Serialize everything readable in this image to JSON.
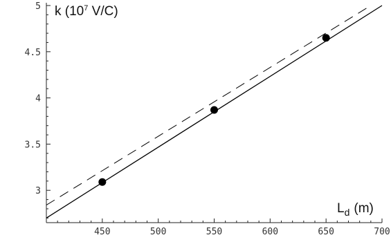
{
  "chart_data": {
    "type": "line",
    "title": "",
    "xlabel": {
      "base": "L",
      "sub": "d",
      "unit": "(m)"
    },
    "ylabel": {
      "pre": "k (10",
      "sup": "7",
      "post": " V/C)"
    },
    "xlim": [
      400,
      700
    ],
    "ylim": [
      2.65,
      5.0
    ],
    "xticks": [
      450,
      500,
      550,
      600,
      650,
      700
    ],
    "yticks": [
      3,
      3.5,
      4,
      4.5,
      5
    ],
    "xtick_labels": [
      "450",
      "500",
      "550",
      "600",
      "650",
      "700"
    ],
    "ytick_labels": [
      "3",
      "3.5",
      "4",
      "4.5",
      "5"
    ],
    "grid": false,
    "series": [
      {
        "style": "solid",
        "x": [
          400,
          700
        ],
        "y": [
          2.7,
          5.0
        ]
      },
      {
        "style": "dashed",
        "x": [
          400,
          690
        ],
        "y": [
          2.84,
          5.0
        ]
      },
      {
        "style": "points",
        "x": [
          450,
          550,
          650
        ],
        "y": [
          3.09,
          3.87,
          4.65
        ]
      }
    ]
  }
}
